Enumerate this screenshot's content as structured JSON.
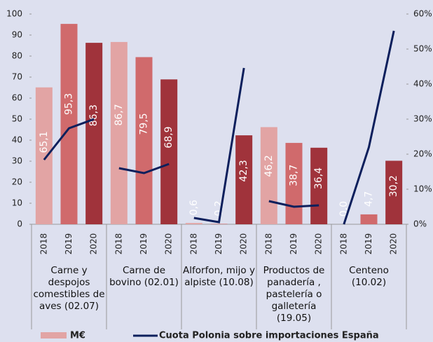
{
  "chart_data": {
    "type": "bar",
    "categories": [
      "2018",
      "2019",
      "2020",
      "2018",
      "2019",
      "2020",
      "2018",
      "2019",
      "2020",
      "2018",
      "2019",
      "2020",
      "2018",
      "2019",
      "2020"
    ],
    "groups": [
      "Carne y despojos comestibles de aves (02.07)",
      "Carne de bovino (02.01)",
      "Alforfon, mijo y alpiste (10.08)",
      "Productos de panadería , pastelería o galletería (19.05)",
      "Centeno (10.02)"
    ],
    "series": [
      {
        "name": "M€",
        "type": "bar",
        "color": "#e2a4a4",
        "colors": [
          "#e2a4a4",
          "#d06a6c",
          "#a0333b",
          "#e2a4a4",
          "#d06a6c",
          "#a0333b",
          "#e2a4a4",
          "#d06a6c",
          "#a0333b",
          "#e2a4a4",
          "#d06a6c",
          "#a0333b",
          "#e2a4a4",
          "#d06a6c",
          "#a0333b"
        ],
        "values": [
          65.1,
          95.3,
          86.3,
          86.7,
          79.5,
          68.9,
          0.6,
          0.2,
          42.3,
          46.2,
          38.7,
          36.4,
          0.0,
          4.7,
          30.2
        ],
        "value_labels": [
          "65,1",
          "95,3",
          "86,3",
          "86,7",
          "79,5",
          "68,9",
          "0,6",
          "0,2",
          "42,3",
          "46,2",
          "38,7",
          "36,4",
          "0,0",
          "4,7",
          "30,2"
        ]
      },
      {
        "name": "Cuota Polonia sobre importaciones España",
        "type": "line",
        "axis": "y2",
        "color": "#0c1f5c",
        "values": [
          18.4,
          27.4,
          30,
          16,
          14.6,
          17.2,
          1.8,
          0.6,
          44.6,
          6.6,
          5,
          5.4,
          0,
          22,
          55.2
        ]
      }
    ],
    "ylim": [
      0,
      100
    ],
    "yticks": [
      0,
      10,
      20,
      30,
      40,
      50,
      60,
      70,
      80,
      90,
      100
    ],
    "y2lim": [
      0,
      60
    ],
    "y2ticks": [
      {
        "value": 0,
        "label": "0%"
      },
      {
        "value": 10,
        "label": "10%"
      },
      {
        "value": 20,
        "label": "20%"
      },
      {
        "value": 30,
        "label": "30%"
      },
      {
        "value": 40,
        "label": "40%"
      },
      {
        "value": 50,
        "label": "50%"
      },
      {
        "value": 60,
        "label": "60%"
      }
    ],
    "grid": false
  }
}
